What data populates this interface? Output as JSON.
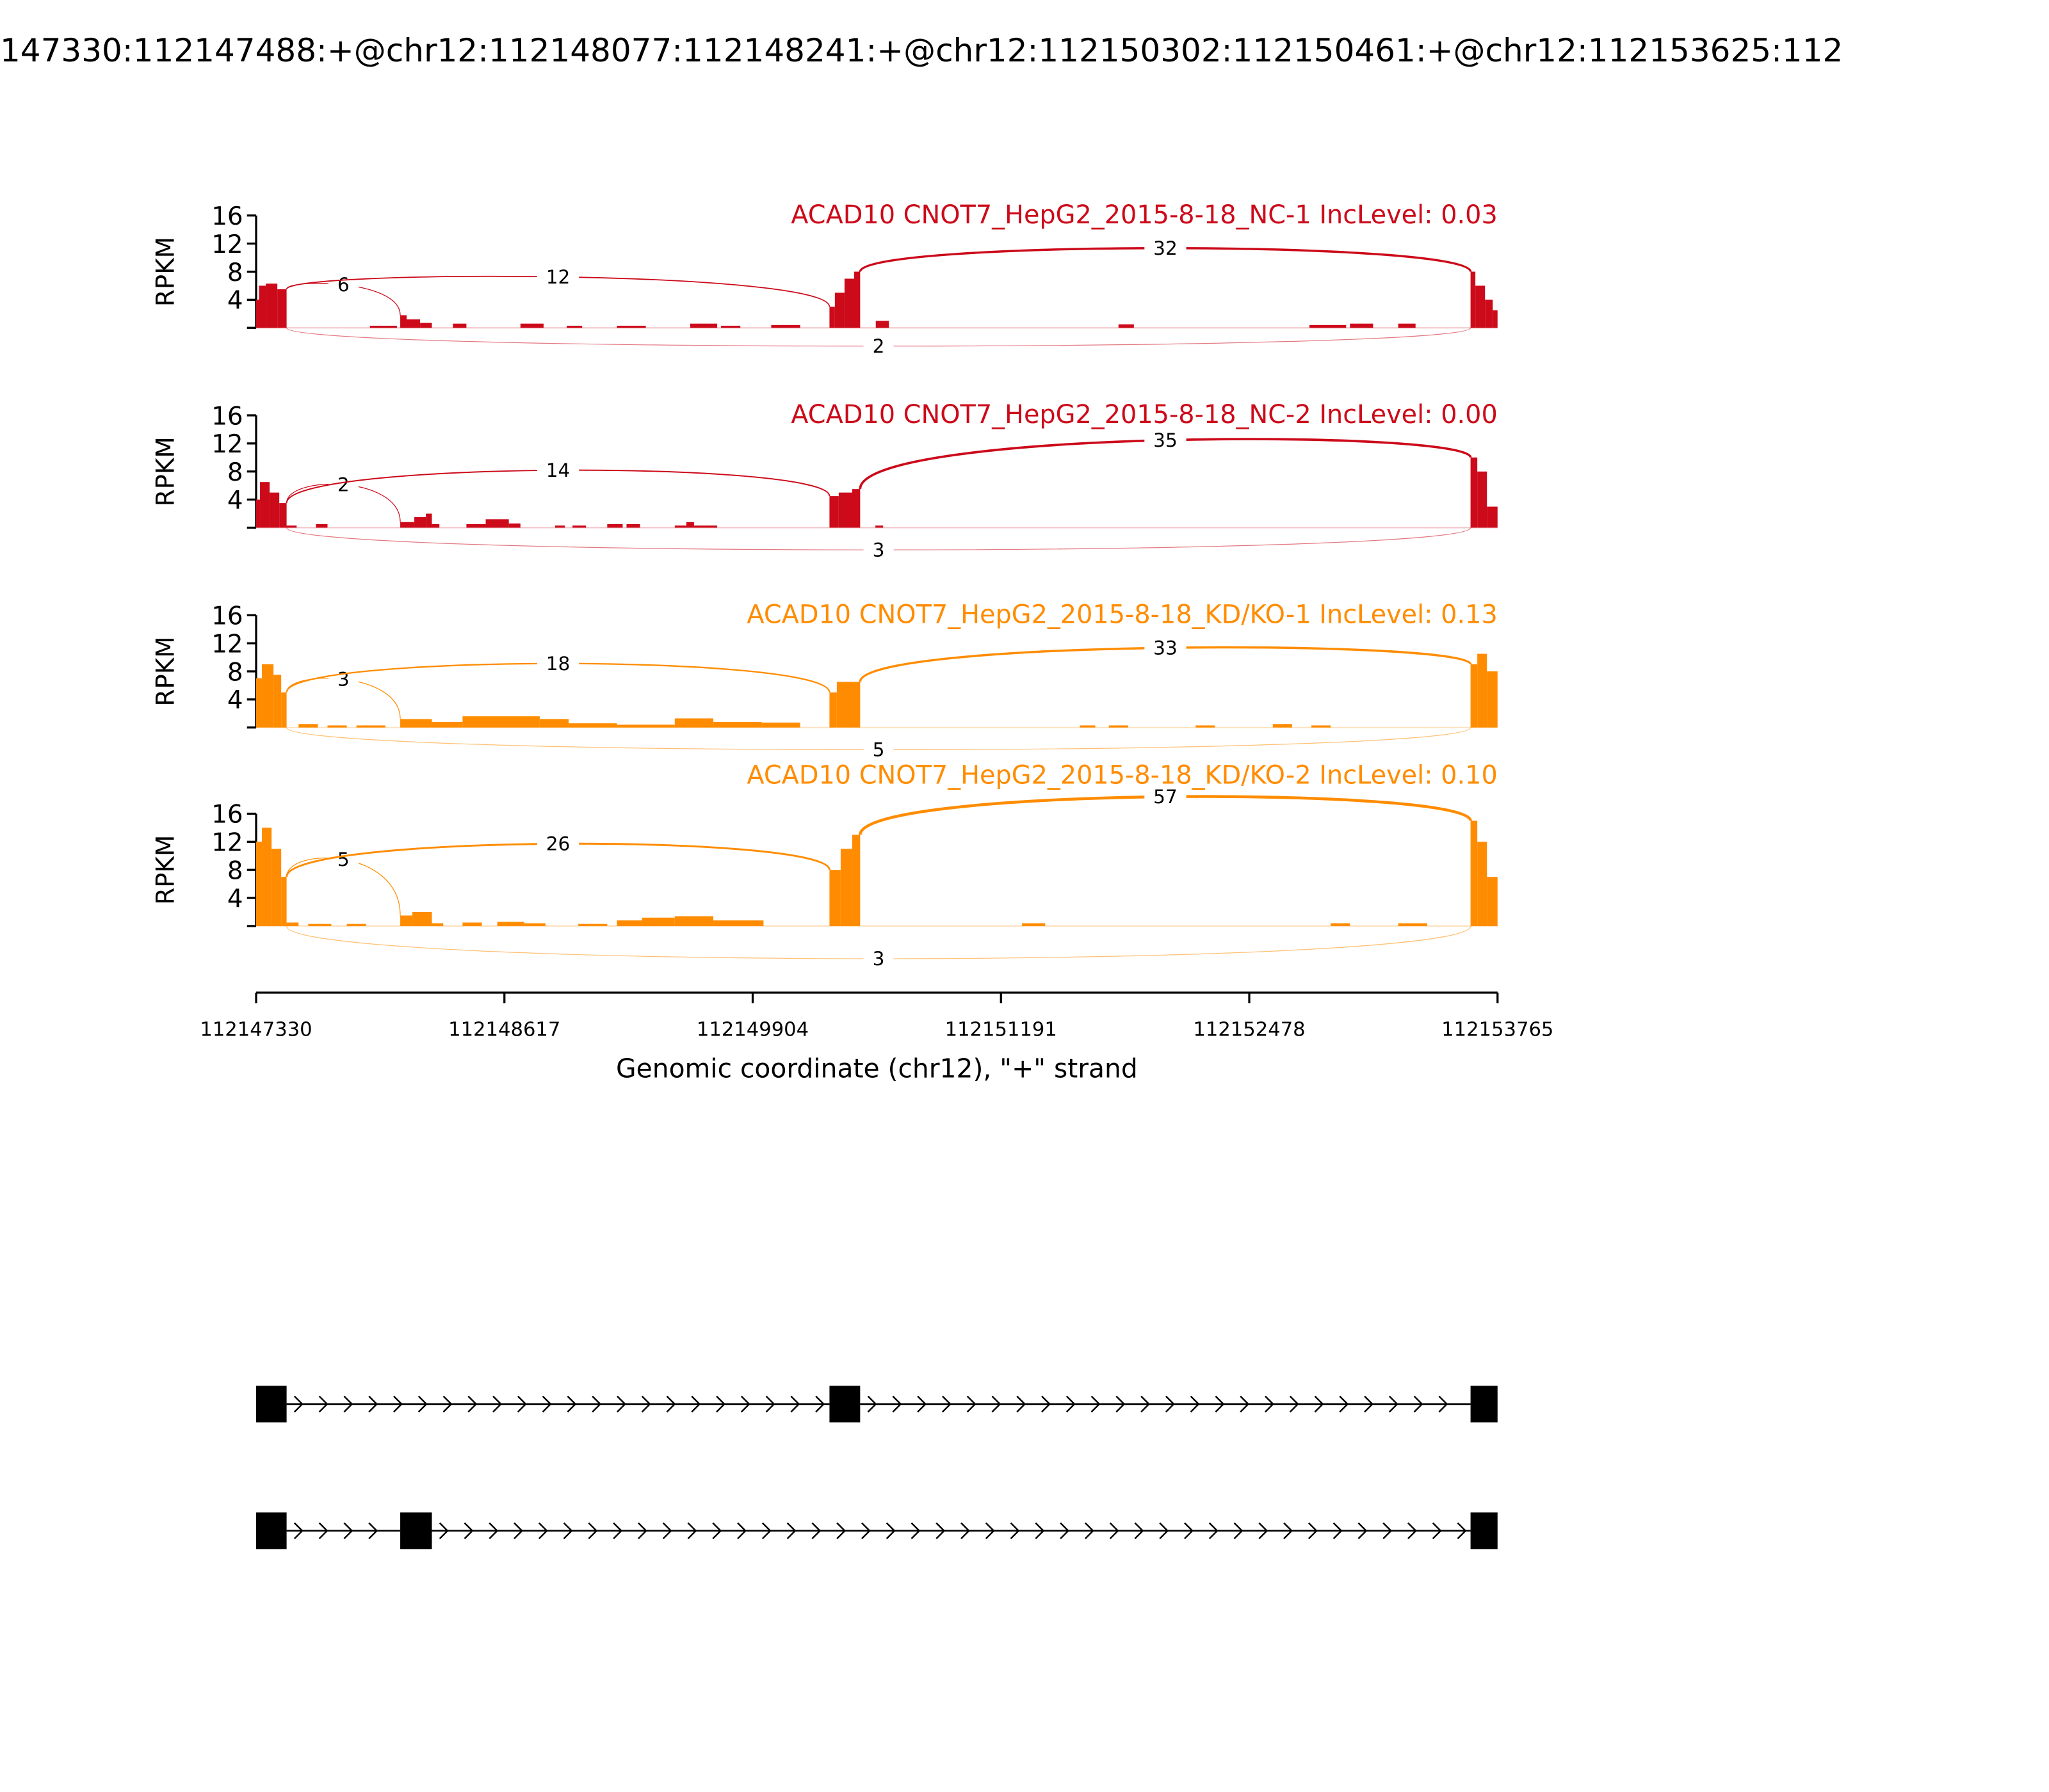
{
  "chart_data": {
    "type": "area",
    "title": "147330:112147488:+@chr12:112148077:112148241:+@chr12:112150302:112150461:+@chr12:112153625:112",
    "xlabel": "Genomic coordinate (chr12), \"+\" strand",
    "ylabel": "RPKM",
    "xlim": [
      112147330,
      112153765
    ],
    "ylim": [
      0,
      16
    ],
    "xticks": [
      "112147330",
      "112148617",
      "112149904",
      "112151191",
      "112152478",
      "112153765"
    ],
    "yticks": [
      "4",
      "8",
      "12",
      "16"
    ],
    "exons": [
      [
        112147330,
        112147488
      ],
      [
        112148077,
        112148241
      ],
      [
        112150302,
        112150461
      ],
      [
        112153625,
        112153765
      ]
    ],
    "samples": [
      {
        "label": "ACAD10 CNOT7_HepG2_2015-8-18_NC-1 IncLevel: 0.03",
        "color": "#cc0a1a",
        "coverage": [
          [
            112147330,
            112147345,
            4
          ],
          [
            112147345,
            112147380,
            6
          ],
          [
            112147380,
            112147440,
            6.3
          ],
          [
            112147440,
            112147488,
            5.5
          ],
          [
            112147920,
            112148060,
            0.3
          ],
          [
            112148077,
            112148110,
            1.8
          ],
          [
            112148110,
            112148180,
            1.2
          ],
          [
            112148180,
            112148241,
            0.7
          ],
          [
            112148350,
            112148420,
            0.6
          ],
          [
            112148700,
            112148820,
            0.6
          ],
          [
            112148940,
            112149020,
            0.3
          ],
          [
            112149200,
            112149350,
            0.3
          ],
          [
            112149580,
            112149720,
            0.6
          ],
          [
            112149740,
            112149840,
            0.3
          ],
          [
            112150000,
            112150150,
            0.4
          ],
          [
            112150302,
            112150330,
            3
          ],
          [
            112150330,
            112150380,
            5
          ],
          [
            112150380,
            112150430,
            7
          ],
          [
            112150430,
            112150461,
            8
          ],
          [
            112150542,
            112150610,
            1.0
          ],
          [
            112151800,
            112151880,
            0.5
          ],
          [
            112152790,
            112152980,
            0.4
          ],
          [
            112153000,
            112153120,
            0.6
          ],
          [
            112153250,
            112153340,
            0.6
          ],
          [
            112153625,
            112153650,
            8
          ],
          [
            112153650,
            112153700,
            6
          ],
          [
            112153700,
            112153740,
            4
          ],
          [
            112153740,
            112153765,
            2.5
          ]
        ],
        "junctions": [
          {
            "from": 112147488,
            "to": 112148077,
            "count": "6",
            "side": "above",
            "rise": 33
          },
          {
            "from": 112147488,
            "to": 112150302,
            "count": "12",
            "side": "above",
            "rise": 39
          },
          {
            "from": 112150461,
            "to": 112153625,
            "count": "32",
            "side": "above",
            "rise": 61
          },
          {
            "from": 112147488,
            "to": 112153625,
            "count": "2",
            "side": "below",
            "rise": 14
          }
        ]
      },
      {
        "label": "ACAD10 CNOT7_HepG2_2015-8-18_NC-2 IncLevel: 0.00",
        "color": "#cc0a1a",
        "coverage": [
          [
            112147330,
            112147350,
            4
          ],
          [
            112147350,
            112147400,
            6.5
          ],
          [
            112147400,
            112147450,
            5
          ],
          [
            112147450,
            112147488,
            3.5
          ],
          [
            112147488,
            112147540,
            0.3
          ],
          [
            112147640,
            112147700,
            0.5
          ],
          [
            112148077,
            112148150,
            0.8
          ],
          [
            112148150,
            112148210,
            1.5
          ],
          [
            112148210,
            112148241,
            2
          ],
          [
            112148241,
            112148280,
            0.5
          ],
          [
            112148420,
            112148520,
            0.5
          ],
          [
            112148520,
            112148640,
            1.2
          ],
          [
            112148640,
            112148700,
            0.6
          ],
          [
            112148880,
            112148930,
            0.3
          ],
          [
            112148970,
            112149040,
            0.3
          ],
          [
            112149150,
            112149230,
            0.5
          ],
          [
            112149250,
            112149320,
            0.5
          ],
          [
            112149500,
            112149560,
            0.3
          ],
          [
            112149560,
            112149600,
            0.8
          ],
          [
            112149600,
            112149720,
            0.3
          ],
          [
            112150302,
            112150350,
            4.5
          ],
          [
            112150350,
            112150420,
            5
          ],
          [
            112150420,
            112150461,
            5.5
          ],
          [
            112150540,
            112150580,
            0.3
          ],
          [
            112153625,
            112153660,
            10
          ],
          [
            112153660,
            112153710,
            8
          ],
          [
            112153710,
            112153765,
            3
          ]
        ],
        "junctions": [
          {
            "from": 112147488,
            "to": 112148077,
            "count": "2",
            "side": "above",
            "rise": 33
          },
          {
            "from": 112147488,
            "to": 112150302,
            "count": "14",
            "side": "above",
            "rise": 44
          },
          {
            "from": 112150461,
            "to": 112153625,
            "count": "35",
            "side": "above",
            "rise": 67
          },
          {
            "from": 112147488,
            "to": 112153625,
            "count": "3",
            "side": "below",
            "rise": 17
          }
        ]
      },
      {
        "label": "ACAD10 CNOT7_HepG2_2015-8-18_KD/KO-1 IncLevel: 0.13",
        "color": "#ff8c00",
        "coverage": [
          [
            112147330,
            112147360,
            7
          ],
          [
            112147360,
            112147420,
            9
          ],
          [
            112147420,
            112147460,
            7.5
          ],
          [
            112147460,
            112147488,
            5
          ],
          [
            112147550,
            112147650,
            0.5
          ],
          [
            112147700,
            112147800,
            0.3
          ],
          [
            112147850,
            112148000,
            0.3
          ],
          [
            112148077,
            112148241,
            1.2
          ],
          [
            112148241,
            112148400,
            0.8
          ],
          [
            112148400,
            112148800,
            1.6
          ],
          [
            112148800,
            112148950,
            1.2
          ],
          [
            112148950,
            112149200,
            0.6
          ],
          [
            112149200,
            112149500,
            0.4
          ],
          [
            112149500,
            112149700,
            1.3
          ],
          [
            112149700,
            112149950,
            0.8
          ],
          [
            112149950,
            112150150,
            0.7
          ],
          [
            112150302,
            112150340,
            5
          ],
          [
            112150340,
            112150461,
            6.5
          ],
          [
            112151600,
            112151680,
            0.3
          ],
          [
            112151750,
            112151850,
            0.3
          ],
          [
            112152200,
            112152300,
            0.3
          ],
          [
            112152600,
            112152700,
            0.5
          ],
          [
            112152800,
            112152900,
            0.3
          ],
          [
            112153625,
            112153660,
            9
          ],
          [
            112153660,
            112153710,
            10.5
          ],
          [
            112153710,
            112153765,
            8
          ]
        ],
        "junctions": [
          {
            "from": 112147488,
            "to": 112148077,
            "count": "3",
            "side": "above",
            "rise": 37
          },
          {
            "from": 112147488,
            "to": 112150302,
            "count": "18",
            "side": "above",
            "rise": 49
          },
          {
            "from": 112150461,
            "to": 112153625,
            "count": "33",
            "side": "above",
            "rise": 61
          },
          {
            "from": 112147488,
            "to": 112153625,
            "count": "5",
            "side": "below",
            "rise": 17
          }
        ]
      },
      {
        "label": "ACAD10 CNOT7_HepG2_2015-8-18_KD/KO-2 IncLevel: 0.10",
        "color": "#ff8c00",
        "coverage": [
          [
            112147330,
            112147360,
            12
          ],
          [
            112147360,
            112147410,
            14
          ],
          [
            112147410,
            112147460,
            11
          ],
          [
            112147460,
            112147488,
            7
          ],
          [
            112147488,
            112147550,
            0.5
          ],
          [
            112147600,
            112147720,
            0.3
          ],
          [
            112147800,
            112147900,
            0.3
          ],
          [
            112148077,
            112148140,
            1.5
          ],
          [
            112148140,
            112148241,
            2
          ],
          [
            112148241,
            112148300,
            0.4
          ],
          [
            112148400,
            112148500,
            0.5
          ],
          [
            112148580,
            112148720,
            0.6
          ],
          [
            112148720,
            112148830,
            0.4
          ],
          [
            112149000,
            112149150,
            0.3
          ],
          [
            112149200,
            112149330,
            0.8
          ],
          [
            112149330,
            112149500,
            1.2
          ],
          [
            112149500,
            112149700,
            1.4
          ],
          [
            112149700,
            112149960,
            0.8
          ],
          [
            112150302,
            112150360,
            8
          ],
          [
            112150360,
            112150420,
            11
          ],
          [
            112150420,
            112150461,
            13
          ],
          [
            112151300,
            112151420,
            0.4
          ],
          [
            112152900,
            112153000,
            0.4
          ],
          [
            112153250,
            112153400,
            0.4
          ],
          [
            112153625,
            112153660,
            15
          ],
          [
            112153660,
            112153710,
            12
          ],
          [
            112153710,
            112153765,
            7
          ]
        ],
        "junctions": [
          {
            "from": 112147488,
            "to": 112148077,
            "count": "5",
            "side": "above",
            "rise": 51
          },
          {
            "from": 112147488,
            "to": 112150302,
            "count": "26",
            "side": "above",
            "rise": 63
          },
          {
            "from": 112150461,
            "to": 112153625,
            "count": "57",
            "side": "above",
            "rise": 99
          },
          {
            "from": 112147488,
            "to": 112153625,
            "count": "3",
            "side": "below",
            "rise": 25
          }
        ]
      }
    ],
    "transcripts": [
      {
        "exons": [
          [
            112147330,
            112147488
          ],
          [
            112150302,
            112150461
          ],
          [
            112153625,
            112153765
          ]
        ]
      },
      {
        "exons": [
          [
            112147330,
            112147488
          ],
          [
            112148077,
            112148241
          ],
          [
            112153625,
            112153765
          ]
        ]
      }
    ]
  }
}
